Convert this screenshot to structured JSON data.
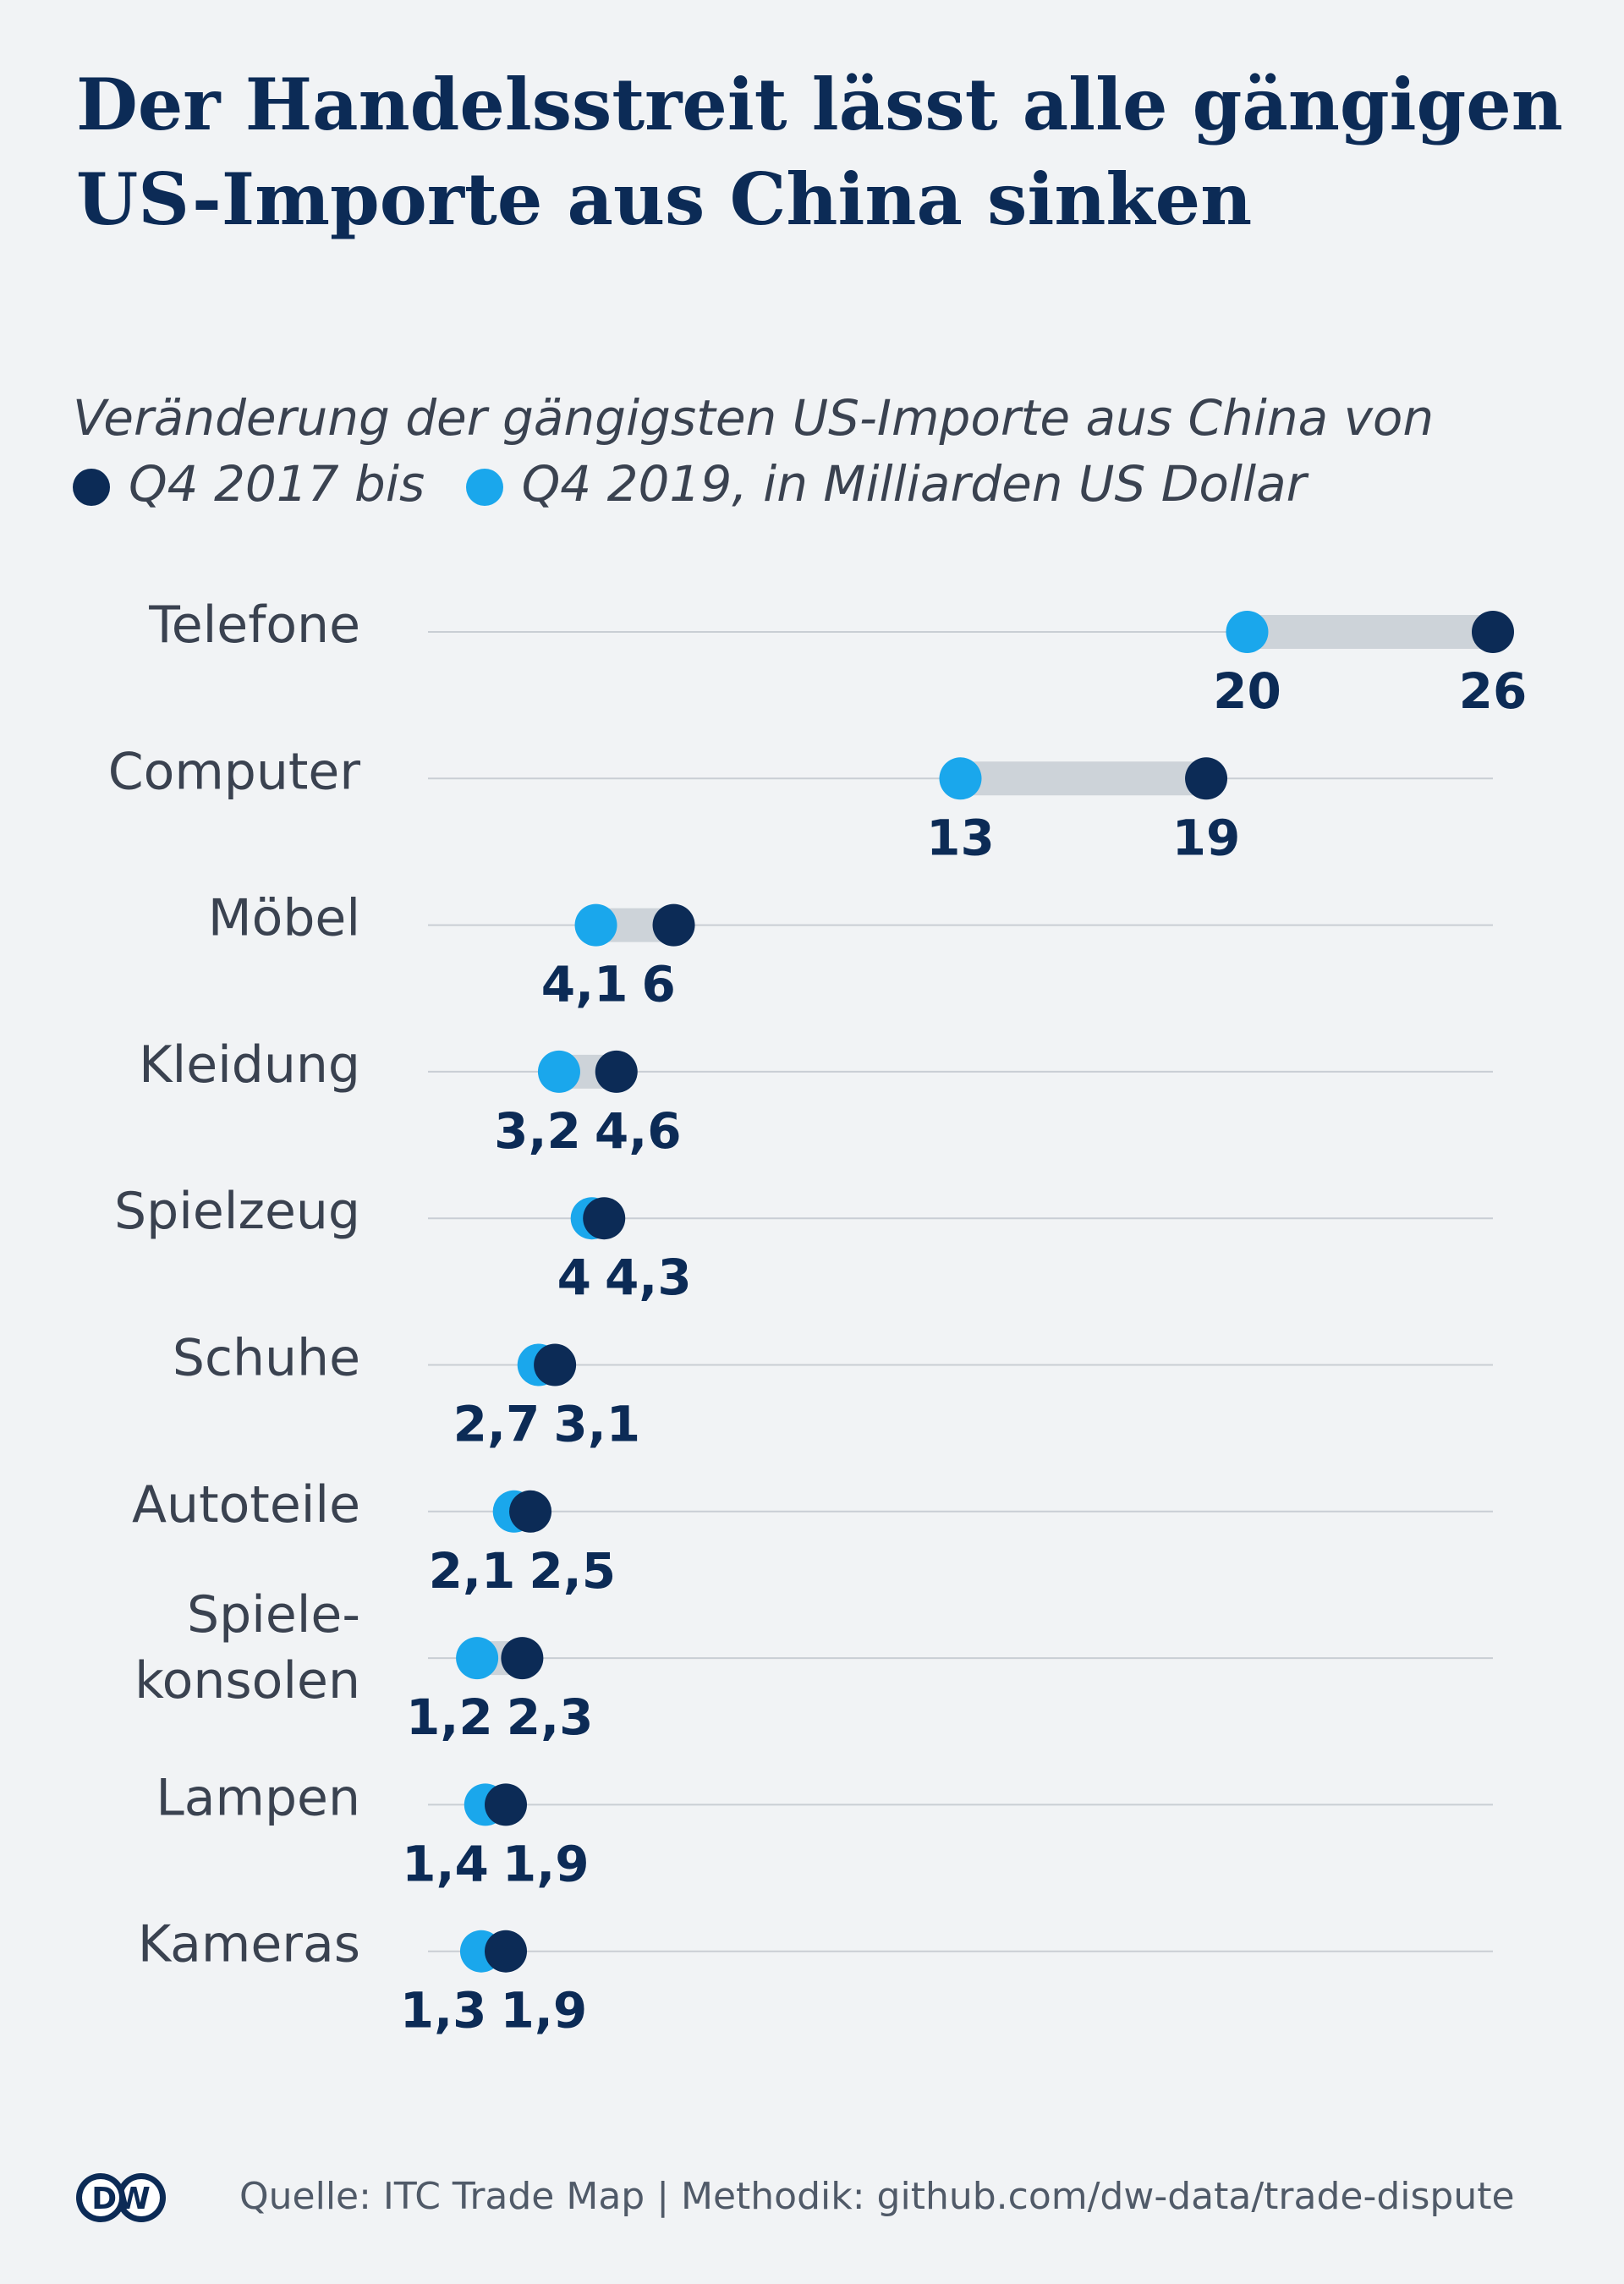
{
  "title_lines": [
    "Der Handelsstreit lässt alle gängigen",
    "US-Importe aus China sinken"
  ],
  "subtitle": {
    "line1": "Veränderung der gängigsten US-Importe aus China von",
    "legend_2017": "Q4 2017 bis",
    "legend_2019": "Q4 2019, in Milliarden US Dollar"
  },
  "colors": {
    "q4_2017": "#0c2b56",
    "q4_2019": "#1aa7ec",
    "range_bar": "#cdd3d9",
    "gridline": "#c9ced4"
  },
  "chart_data": {
    "type": "dumbbell",
    "title": "Der Handelsstreit lässt alle gängigen US-Importe aus China sinken",
    "subtitle": "Veränderung der gängigsten US-Importe aus China von Q4 2017 bis Q4 2019, in Milliarden US Dollar",
    "unit": "Milliarden US Dollar",
    "xlim": [
      0,
      26
    ],
    "grid": true,
    "legend_position": "top-left",
    "series": [
      {
        "name": "Q4 2017",
        "color": "#0c2b56"
      },
      {
        "name": "Q4 2019",
        "color": "#1aa7ec"
      }
    ],
    "rows": [
      {
        "label": [
          "Telefone"
        ],
        "q4_2017": 26,
        "q4_2019": 20,
        "label_2017": "26",
        "label_2019": "20"
      },
      {
        "label": [
          "Computer"
        ],
        "q4_2017": 19,
        "q4_2019": 13,
        "label_2017": "19",
        "label_2019": "13"
      },
      {
        "label": [
          "Möbel"
        ],
        "q4_2017": 6,
        "q4_2019": 4.1,
        "label_2017": "6",
        "label_2019": "4,1"
      },
      {
        "label": [
          "Kleidung"
        ],
        "q4_2017": 4.6,
        "q4_2019": 3.2,
        "label_2017": "4,6",
        "label_2019": "3,2"
      },
      {
        "label": [
          "Spielzeug"
        ],
        "q4_2017": 4.3,
        "q4_2019": 4,
        "label_2017": "4,3",
        "label_2019": "4"
      },
      {
        "label": [
          "Schuhe"
        ],
        "q4_2017": 3.1,
        "q4_2019": 2.7,
        "label_2017": "3,1",
        "label_2019": "2,7"
      },
      {
        "label": [
          "Autoteile"
        ],
        "q4_2017": 2.5,
        "q4_2019": 2.1,
        "label_2017": "2,5",
        "label_2019": "2,1"
      },
      {
        "label": [
          "Spiele-",
          "konsolen"
        ],
        "q4_2017": 2.3,
        "q4_2019": 1.2,
        "label_2017": "2,3",
        "label_2019": "1,2"
      },
      {
        "label": [
          "Lampen"
        ],
        "q4_2017": 1.9,
        "q4_2019": 1.4,
        "label_2017": "1,9",
        "label_2019": "1,4"
      },
      {
        "label": [
          "Kameras"
        ],
        "q4_2017": 1.9,
        "q4_2019": 1.3,
        "label_2017": "1,9",
        "label_2019": "1,3"
      }
    ]
  },
  "footer": {
    "logo_text": "DW",
    "source": "Quelle: ITC Trade Map | Methodik: github.com/dw-data/trade-dispute"
  }
}
